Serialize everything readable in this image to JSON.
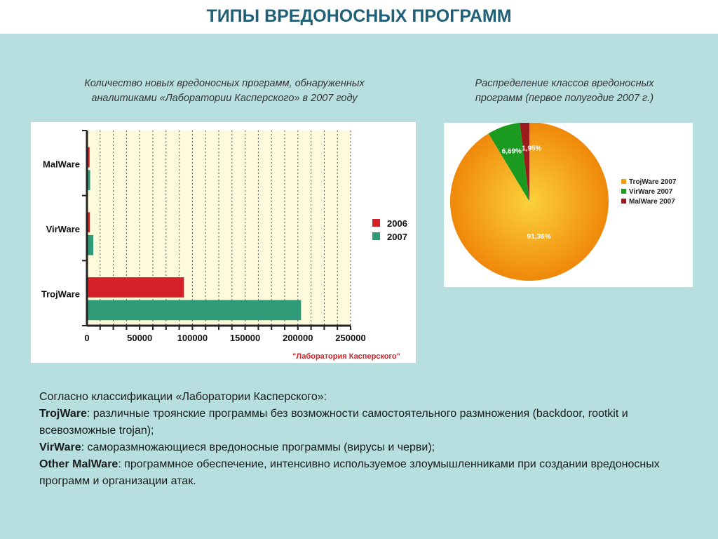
{
  "page": {
    "title": "ТИПЫ ВРЕДОНОСНЫХ ПРОГРАММ",
    "bar_subtitle": [
      "Количество новых вредоносных программ, обнаруженных",
      "аналитиками «Лаборатории Касперского» в 2007 году"
    ],
    "pie_subtitle": [
      "Распределение классов вредоносных",
      "программ (первое полугодие 2007 г.)"
    ],
    "bar_credit": "\"Лаборатория Касперского\"",
    "description": {
      "intro": "Согласно классификации «Лаборатории Касперского»:",
      "items": [
        {
          "term": "TrojWare",
          "text": ": различные троянские программы без возможности самостоятельного размножения (backdoor, rootkit и всевозможные trojan);"
        },
        {
          "term": "VirWare",
          "text": ": саморазмножающиеся вредоносные программы (вирусы и черви);"
        },
        {
          "term": "Other MalWare",
          "text": ": программное обеспечение, интенсивно используемое злоумышленниками при создании вредоносных программ и организации атак."
        }
      ]
    }
  },
  "chart_data": [
    {
      "type": "bar",
      "orientation": "horizontal",
      "categories": [
        "MalWare",
        "VirWare",
        "TrojWare"
      ],
      "series": [
        {
          "name": "2006",
          "color": "#d42027",
          "values": [
            2500,
            2800,
            92000
          ]
        },
        {
          "name": "2007",
          "color": "#2e9a78",
          "values": [
            3000,
            6000,
            203000
          ]
        }
      ],
      "xlim": [
        0,
        250000
      ],
      "xticks": [
        0,
        50000,
        100000,
        150000,
        200000,
        250000
      ],
      "xtick_labels": [
        "0",
        "50000",
        "100000",
        "150000",
        "200000",
        "250000"
      ],
      "grid": true,
      "legend": "right",
      "plot_background": "#fdfbdc"
    },
    {
      "type": "pie",
      "slices": [
        {
          "label": "TrojWare 2007",
          "value": 91.36,
          "display": "91,36%",
          "color": "#f29c10"
        },
        {
          "label": "VirWare 2007",
          "value": 6.69,
          "display": "6,69%",
          "color": "#1a9a1f"
        },
        {
          "label": "MalWare 2007",
          "value": 1.95,
          "display": "1,95%",
          "color": "#9b1c1c"
        }
      ],
      "legend": "right"
    }
  ]
}
